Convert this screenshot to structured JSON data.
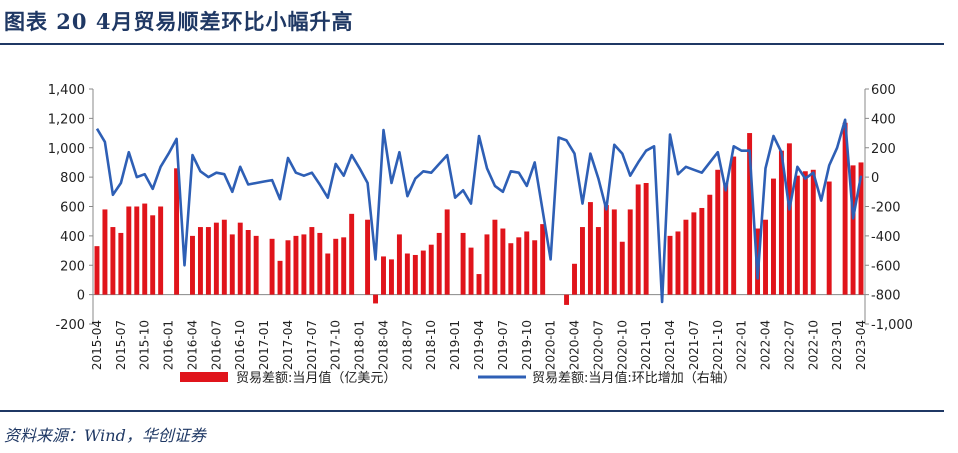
{
  "header": {
    "title": "图表 20   4月贸易顺差环比小幅升高"
  },
  "footer": {
    "source": "资料来源：Wind，华创证券"
  },
  "chart_data": {
    "type": "bar",
    "xlabel": "",
    "ylabel_left": "",
    "ylabel_right": "",
    "ylim_left": [
      -200,
      1400
    ],
    "ylim_right": [
      -1000,
      600
    ],
    "yticks_left": [
      "-200",
      "0",
      "200",
      "400",
      "600",
      "800",
      "1,000",
      "1,200",
      "1,400"
    ],
    "yticks_right": [
      "-1,000",
      "-800",
      "-600",
      "-400",
      "-200",
      "0",
      "200",
      "400",
      "600"
    ],
    "yticks_left_values": [
      -200,
      0,
      200,
      400,
      600,
      800,
      1000,
      1200,
      1400
    ],
    "yticks_right_values": [
      -1000,
      -800,
      -600,
      -400,
      -200,
      0,
      200,
      400,
      600
    ],
    "categories": [
      "2015-04",
      "2015-05",
      "2015-06",
      "2015-07",
      "2015-08",
      "2015-09",
      "2015-10",
      "2015-11",
      "2015-12",
      "2016-01",
      "2016-02",
      "2016-03",
      "2016-04",
      "2016-05",
      "2016-06",
      "2016-07",
      "2016-08",
      "2016-09",
      "2016-10",
      "2016-11",
      "2016-12",
      "2017-01",
      "2017-02",
      "2017-03",
      "2017-04",
      "2017-05",
      "2017-06",
      "2017-07",
      "2017-08",
      "2017-09",
      "2017-10",
      "2017-11",
      "2017-12",
      "2018-01",
      "2018-02",
      "2018-03",
      "2018-04",
      "2018-05",
      "2018-06",
      "2018-07",
      "2018-08",
      "2018-09",
      "2018-10",
      "2018-11",
      "2018-12",
      "2019-01",
      "2019-02",
      "2019-03",
      "2019-04",
      "2019-05",
      "2019-06",
      "2019-07",
      "2019-08",
      "2019-09",
      "2019-10",
      "2019-11",
      "2019-12",
      "2020-01",
      "2020-02",
      "2020-03",
      "2020-04",
      "2020-05",
      "2020-06",
      "2020-07",
      "2020-08",
      "2020-09",
      "2020-10",
      "2020-11",
      "2020-12",
      "2021-01",
      "2021-02",
      "2021-03",
      "2021-04",
      "2021-05",
      "2021-06",
      "2021-07",
      "2021-08",
      "2021-09",
      "2021-10",
      "2021-11",
      "2021-12",
      "2022-01",
      "2022-02",
      "2022-03",
      "2022-04",
      "2022-05",
      "2022-06",
      "2022-07",
      "2022-08",
      "2022-09",
      "2022-10",
      "2022-11",
      "2022-12",
      "2023-01",
      "2023-02",
      "2023-03",
      "2023-04"
    ],
    "tick_labels": [
      "2015-04",
      "2015-07",
      "2015-10",
      "2016-01",
      "2016-04",
      "2016-07",
      "2016-10",
      "2017-01",
      "2017-04",
      "2017-07",
      "2017-10",
      "2018-01",
      "2018-04",
      "2018-07",
      "2018-10",
      "2019-01",
      "2019-04",
      "2019-07",
      "2019-10",
      "2020-01",
      "2020-04",
      "2020-07",
      "2020-10",
      "2021-01",
      "2021-04",
      "2021-07",
      "2021-10",
      "2022-01",
      "2022-04",
      "2022-07",
      "2022-10",
      "2023-01",
      "2023-04"
    ],
    "series": [
      {
        "name": "贸易差额:当月值（亿美元）",
        "type": "bar",
        "axis": "left",
        "color": "#e0141b",
        "values": [
          330,
          580,
          460,
          420,
          600,
          600,
          620,
          540,
          600,
          0,
          860,
          0,
          400,
          460,
          460,
          490,
          510,
          410,
          490,
          440,
          400,
          0,
          380,
          230,
          370,
          400,
          410,
          460,
          420,
          280,
          380,
          390,
          550,
          0,
          510,
          -60,
          260,
          240,
          410,
          280,
          270,
          300,
          340,
          420,
          580,
          0,
          420,
          320,
          140,
          410,
          510,
          450,
          350,
          390,
          430,
          370,
          480,
          0,
          0,
          -70,
          210,
          460,
          630,
          460,
          610,
          580,
          360,
          580,
          750,
          760,
          0,
          0,
          400,
          430,
          510,
          560,
          590,
          680,
          850,
          760,
          940,
          0,
          1100,
          450,
          510,
          790,
          980,
          1030,
          810,
          840,
          850,
          0,
          770,
          0,
          1170,
          880,
          900
        ]
      },
      {
        "name": "贸易差额:当月值:环比增加（右轴）",
        "type": "line",
        "axis": "right",
        "color": "#2e5fb5",
        "values": [
          330,
          240,
          -120,
          -40,
          170,
          0,
          20,
          -80,
          70,
          160,
          260,
          -600,
          150,
          40,
          0,
          30,
          20,
          -100,
          70,
          -50,
          -40,
          -30,
          -20,
          -150,
          130,
          30,
          10,
          30,
          -50,
          -140,
          90,
          10,
          150,
          60,
          -40,
          -560,
          320,
          -40,
          170,
          -130,
          -10,
          40,
          30,
          90,
          150,
          -140,
          -90,
          -180,
          280,
          60,
          -60,
          -100,
          40,
          30,
          -60,
          100,
          -230,
          -560,
          270,
          250,
          160,
          -180,
          160,
          -10,
          -220,
          220,
          160,
          10,
          100,
          180,
          210,
          -850,
          290,
          20,
          70,
          50,
          30,
          100,
          170,
          -90,
          210,
          180,
          180,
          -690,
          60,
          280,
          170,
          -220,
          70,
          -10,
          30,
          -160,
          80,
          200,
          390,
          -280,
          10
        ]
      }
    ]
  }
}
